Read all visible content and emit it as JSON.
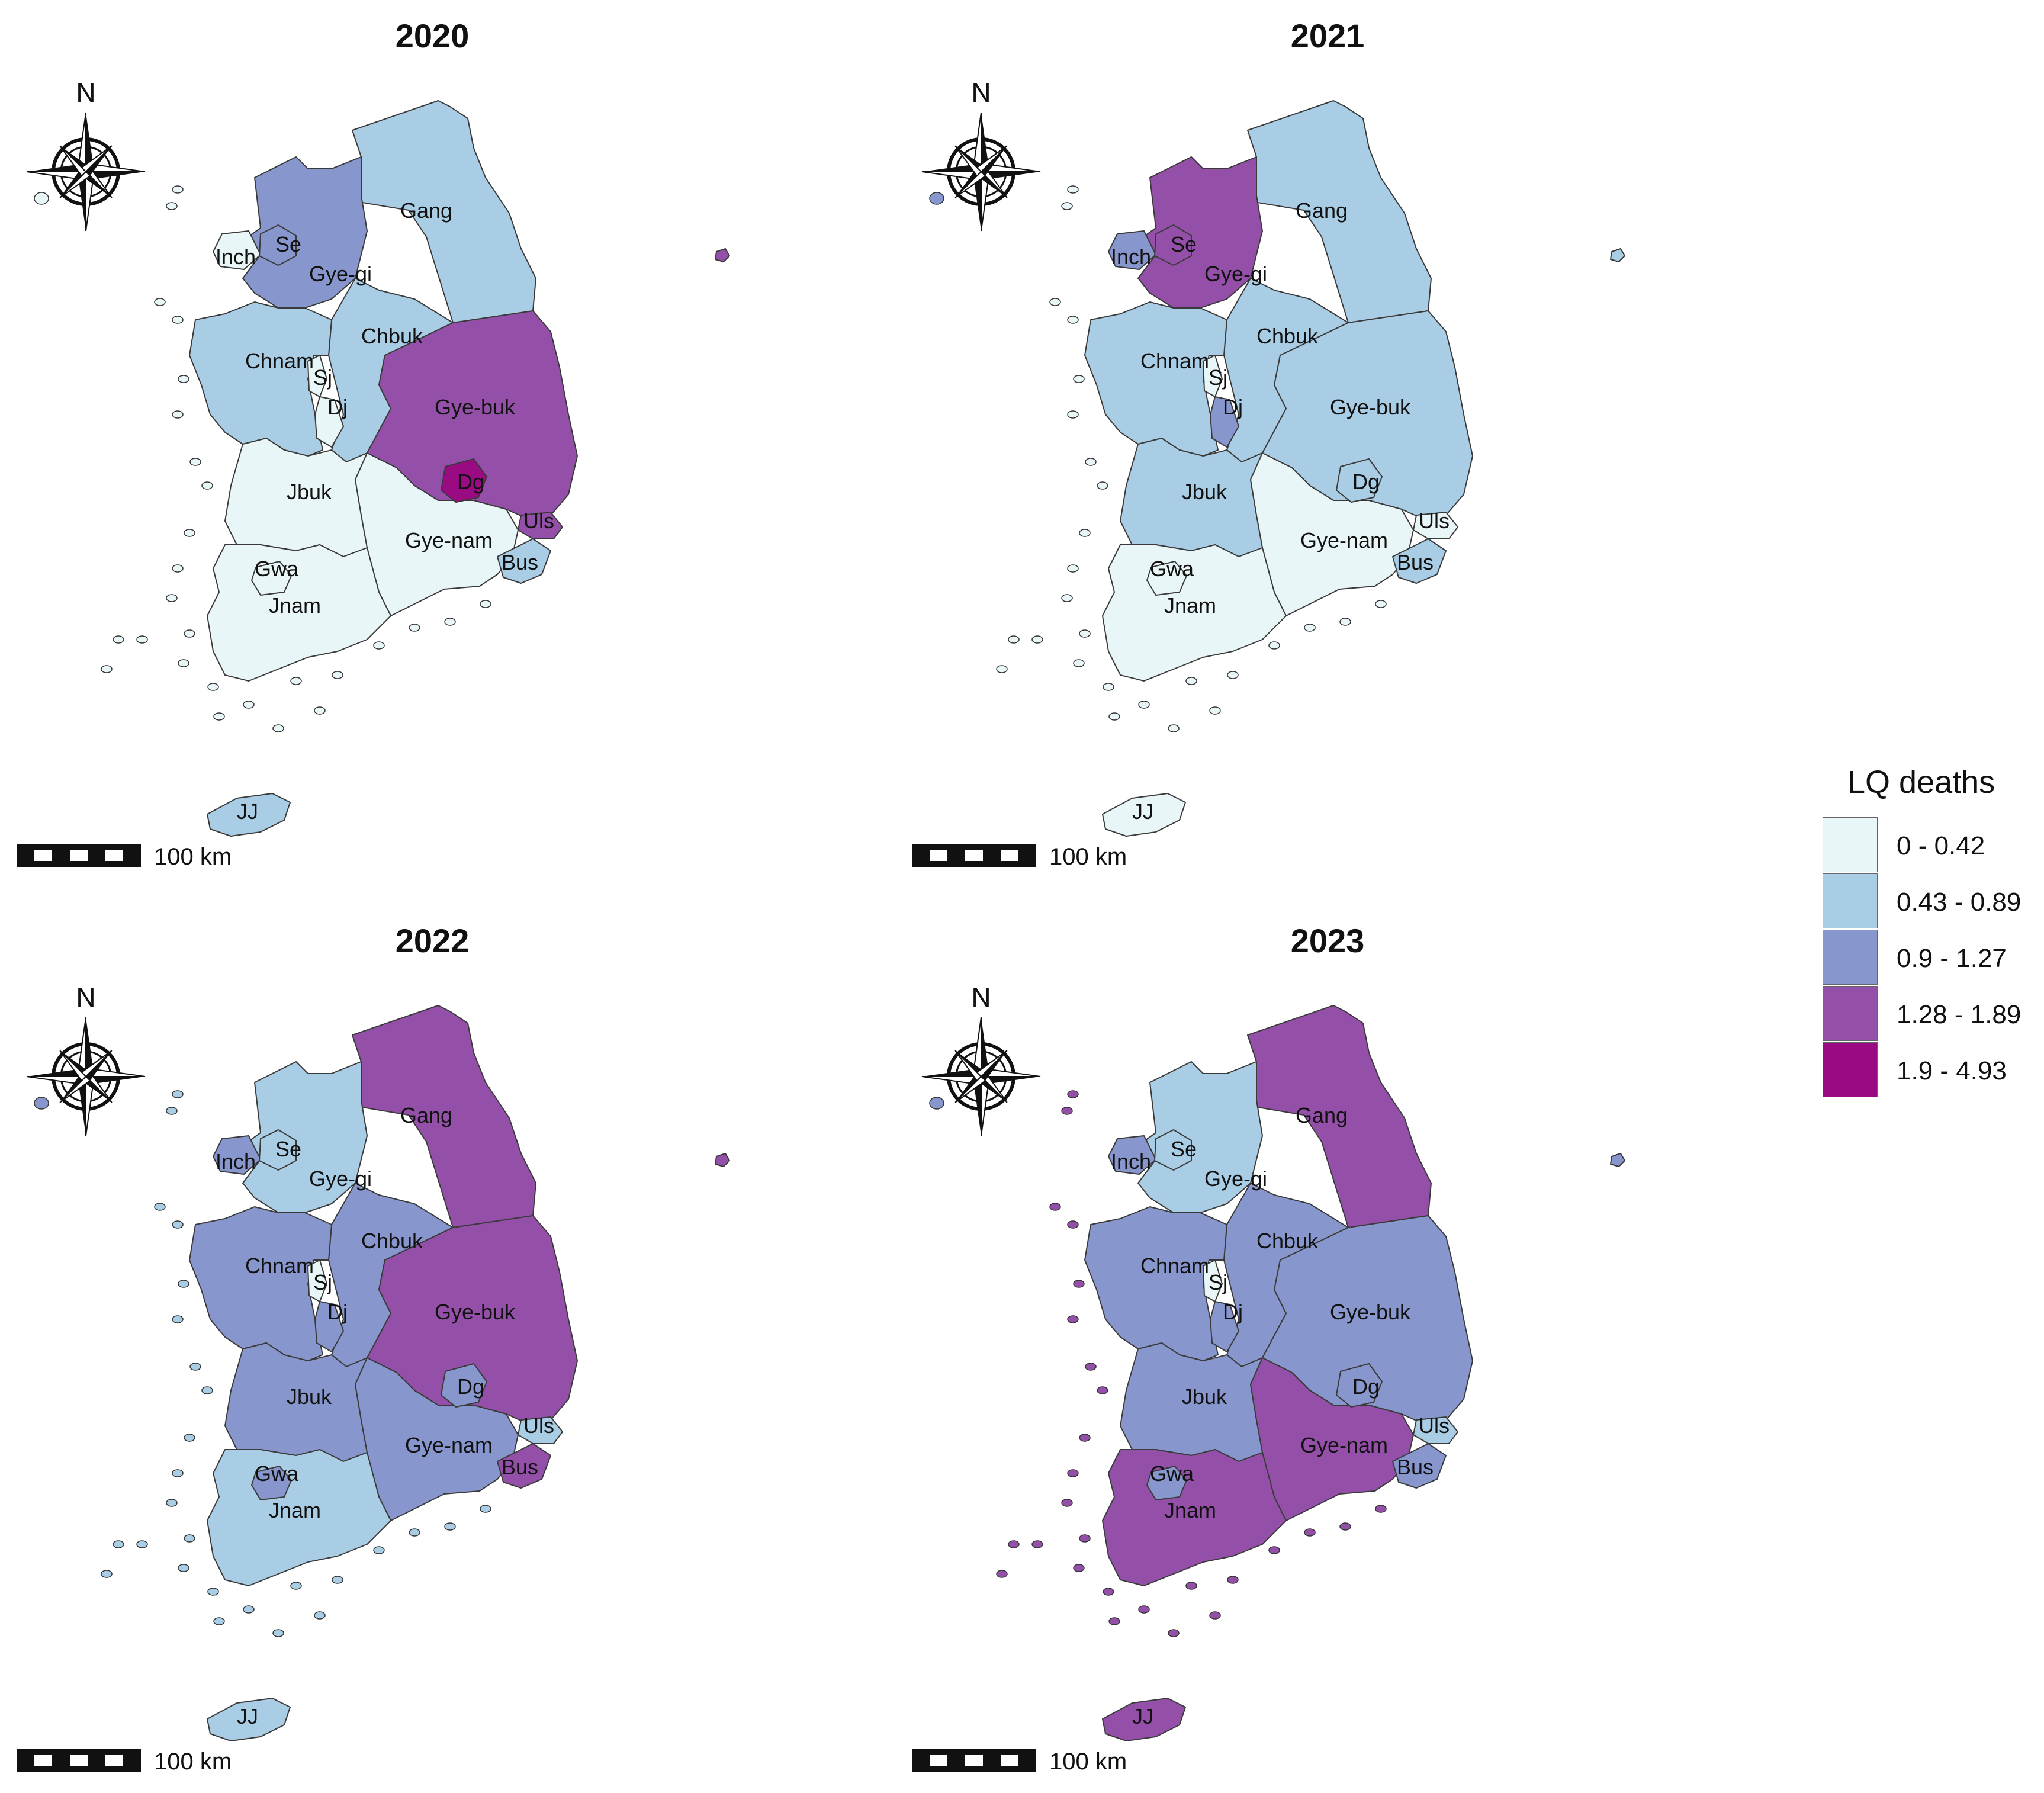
{
  "legend": {
    "title": "LQ deaths",
    "classes": [
      {
        "label": "0 - 0.42",
        "color": "#e9f6f8"
      },
      {
        "label": "0.43 - 0.89",
        "color": "#a9cde4"
      },
      {
        "label": "0.9 - 1.27",
        "color": "#8796cc"
      },
      {
        "label": "1.28 - 1.89",
        "color": "#9450a9"
      },
      {
        "label": "1.9 - 4.93",
        "color": "#9a0a82"
      }
    ]
  },
  "map_common": {
    "north_label": "N",
    "scale_label": "100 km"
  },
  "panels": [
    {
      "year": "2020",
      "classes": {
        "Gang": 1,
        "Gye-gi": 2,
        "Se": 2,
        "Inch": 0,
        "Chbuk": 1,
        "Chnam": 1,
        "Sj": 0,
        "Dj": 0,
        "Gye-buk": 3,
        "Dg": 4,
        "Uls": 3,
        "Jbuk": 0,
        "Gye-nam": 0,
        "Bus": 1,
        "Jnam": 0,
        "Gwa": 0,
        "JJ": 1,
        "Dokdo": 3
      }
    },
    {
      "year": "2021",
      "classes": {
        "Gang": 1,
        "Gye-gi": 3,
        "Se": 3,
        "Inch": 2,
        "Chbuk": 1,
        "Chnam": 1,
        "Sj": 0,
        "Dj": 2,
        "Gye-buk": 1,
        "Dg": 1,
        "Uls": 0,
        "Jbuk": 1,
        "Gye-nam": 0,
        "Bus": 1,
        "Jnam": 0,
        "Gwa": 0,
        "JJ": 0,
        "Dokdo": 1
      }
    },
    {
      "year": "2022",
      "classes": {
        "Gang": 3,
        "Gye-gi": 1,
        "Se": 1,
        "Inch": 2,
        "Chbuk": 2,
        "Chnam": 2,
        "Sj": 0,
        "Dj": 2,
        "Gye-buk": 3,
        "Dg": 2,
        "Uls": 1,
        "Jbuk": 2,
        "Gye-nam": 2,
        "Bus": 3,
        "Jnam": 1,
        "Gwa": 2,
        "JJ": 1,
        "Dokdo": 3
      }
    },
    {
      "year": "2023",
      "classes": {
        "Gang": 3,
        "Gye-gi": 1,
        "Se": 1,
        "Inch": 2,
        "Chbuk": 2,
        "Chnam": 2,
        "Sj": 0,
        "Dj": 2,
        "Gye-buk": 2,
        "Dg": 2,
        "Uls": 1,
        "Jbuk": 2,
        "Gye-nam": 3,
        "Bus": 2,
        "Jnam": 3,
        "Gwa": 2,
        "JJ": 3,
        "Dokdo": 2
      }
    }
  ],
  "region_labels": [
    "Gang",
    "Se",
    "Inch",
    "Gye-gi",
    "Chbuk",
    "Chnam",
    "Sj",
    "Dj",
    "Gye-buk",
    "Dg",
    "Jbuk",
    "Uls",
    "Gye-nam",
    "Bus",
    "Gwa",
    "Jnam",
    "JJ"
  ]
}
